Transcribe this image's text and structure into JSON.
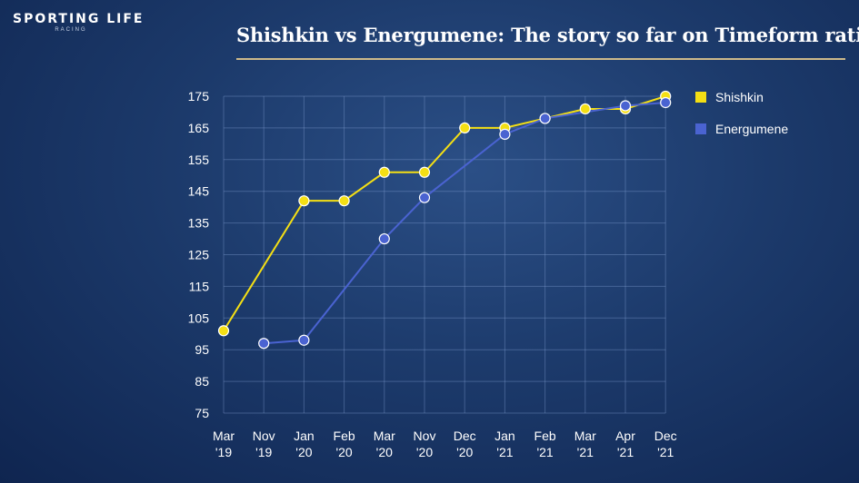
{
  "brand": {
    "name": "SPORTING LIFE",
    "sub": "RACING"
  },
  "header": {
    "title": "Shishkin vs Energumene: The story so far on Timeform ratings"
  },
  "legend": [
    {
      "label": "Shishkin",
      "color": "#f4df14"
    },
    {
      "label": "Energumene",
      "color": "#4a63d1"
    }
  ],
  "chart_data": {
    "type": "line",
    "title": "Shishkin vs Energumene: The story so far on Timeform ratings",
    "xlabel": "",
    "ylabel": "",
    "ylim": [
      75,
      175
    ],
    "yticks": [
      175,
      165,
      155,
      145,
      135,
      125,
      115,
      105,
      95,
      85,
      75
    ],
    "categories": [
      [
        "Mar",
        "'19"
      ],
      [
        "Nov",
        "'19"
      ],
      [
        "Jan",
        "'20"
      ],
      [
        "Feb",
        "'20"
      ],
      [
        "Mar",
        "'20"
      ],
      [
        "Nov",
        "'20"
      ],
      [
        "Dec",
        "'20"
      ],
      [
        "Jan",
        "'21"
      ],
      [
        "Feb",
        "'21"
      ],
      [
        "Mar",
        "'21"
      ],
      [
        "Apr",
        "'21"
      ],
      [
        "Dec",
        "'21"
      ]
    ],
    "series": [
      {
        "name": "Shishkin",
        "color": "#f4df14",
        "values": [
          101,
          null,
          142,
          142,
          151,
          151,
          165,
          165,
          168,
          171,
          171,
          175
        ]
      },
      {
        "name": "Energumene",
        "color": "#4a63d1",
        "values": [
          null,
          97,
          98,
          null,
          130,
          143,
          null,
          163,
          168,
          null,
          172,
          173
        ]
      }
    ],
    "grid": true,
    "legend_position": "top-right"
  }
}
